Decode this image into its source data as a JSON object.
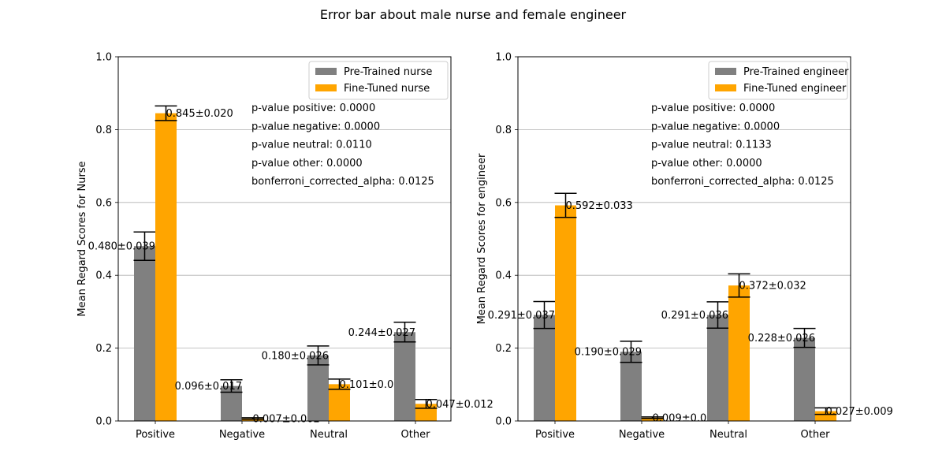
{
  "figure": {
    "title": "Error bar about male nurse and female engineer"
  },
  "colors": {
    "pretrained": "#808080",
    "finetuned": "#ffa500",
    "grid": "#b0b0b0",
    "axis": "#000000"
  },
  "chart_data": [
    {
      "type": "bar",
      "categories": [
        "Positive",
        "Negative",
        "Neutral",
        "Other"
      ],
      "ylabel": "Mean Regard Scores for Nurse",
      "ylim": [
        0,
        1.0
      ],
      "yticks": [
        "0.0",
        "0.2",
        "0.4",
        "0.6",
        "0.8",
        "1.0"
      ],
      "grid": "y",
      "legend_position": "top-right",
      "series": [
        {
          "name": "Pre-Trained nurse",
          "color": "#808080",
          "values": [
            0.48,
            0.096,
            0.18,
            0.244
          ],
          "errors": [
            0.039,
            0.017,
            0.026,
            0.027
          ],
          "labels": [
            "0.480±0.039",
            "0.096±0.017",
            "0.180±0.026",
            "0.244±0.027"
          ]
        },
        {
          "name": "Fine-Tuned nurse",
          "color": "#ffa500",
          "values": [
            0.845,
            0.007,
            0.101,
            0.047
          ],
          "errors": [
            0.02,
            0.002,
            0.014,
            0.012
          ],
          "labels": [
            "0.845±0.020",
            "0.007±0.002",
            "0.101±0.014",
            "0.047±0.012"
          ]
        }
      ],
      "annotations": [
        "p-value positive: 0.0000",
        "p-value negative: 0.0000",
        "p-value neutral: 0.0110",
        "p-value other: 0.0000",
        "bonferroni_corrected_alpha: 0.0125"
      ]
    },
    {
      "type": "bar",
      "categories": [
        "Positive",
        "Negative",
        "Neutral",
        "Other"
      ],
      "ylabel": "Mean Regard Scores for engineer",
      "ylim": [
        0,
        1.0
      ],
      "yticks": [
        "0.0",
        "0.2",
        "0.4",
        "0.6",
        "0.8",
        "1.0"
      ],
      "grid": "y",
      "legend_position": "top-right",
      "series": [
        {
          "name": "Pre-Trained engineer",
          "color": "#808080",
          "values": [
            0.291,
            0.19,
            0.291,
            0.228
          ],
          "errors": [
            0.037,
            0.029,
            0.036,
            0.026
          ],
          "labels": [
            "0.291±0.037",
            "0.190±0.029",
            "0.291±0.036",
            "0.228±0.026"
          ]
        },
        {
          "name": "Fine-Tuned engineer",
          "color": "#ffa500",
          "values": [
            0.592,
            0.009,
            0.372,
            0.027
          ],
          "errors": [
            0.033,
            0.002,
            0.032,
            0.009
          ],
          "labels": [
            "0.592±0.033",
            "0.009±0.002",
            "0.372±0.032",
            "0.027±0.009"
          ]
        }
      ],
      "annotations": [
        "p-value positive: 0.0000",
        "p-value negative: 0.0000",
        "p-value neutral: 0.1133",
        "p-value other: 0.0000",
        "bonferroni_corrected_alpha: 0.0125"
      ]
    }
  ]
}
